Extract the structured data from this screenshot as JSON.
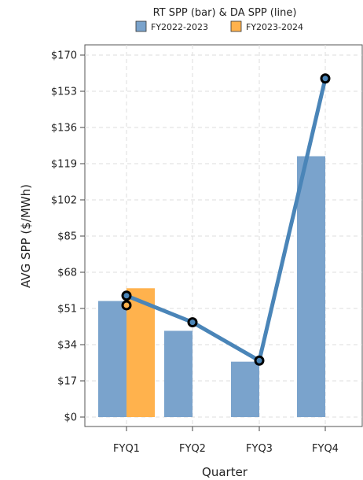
{
  "chart_data": {
    "type": "bar",
    "legend": {
      "title": "RT SPP (bar) & DA SPP (line)",
      "placement": "top",
      "items": [
        "FY2022-2023",
        "FY2023-2024"
      ]
    },
    "categories": [
      "FYQ1",
      "FYQ2",
      "FYQ3",
      "FYQ4"
    ],
    "bar_series": [
      {
        "name": "FY2022-2023",
        "color": "#7aa3cc",
        "values": [
          54.5,
          40.5,
          26.0,
          122.5
        ]
      },
      {
        "name": "FY2023-2024",
        "color": "#ffb24d",
        "values": [
          60.5,
          null,
          null,
          null
        ]
      }
    ],
    "line_series": [
      {
        "name": "FY2022-2023",
        "color": "#4a85b8",
        "values": [
          57.0,
          44.5,
          26.5,
          159.0
        ]
      },
      {
        "name": "FY2023-2024",
        "values": [
          52.5,
          null,
          null,
          null
        ]
      }
    ],
    "xlabel": "Quarter",
    "ylabel": "AVG SPP ($/MWh)",
    "ylim": [
      0,
      170
    ],
    "yticks": [
      0,
      17,
      34,
      51,
      68,
      85,
      102,
      119,
      136,
      153,
      170
    ],
    "ytick_labels": [
      "$0",
      "$17",
      "$34",
      "$51",
      "$68",
      "$85",
      "$102",
      "$119",
      "$136",
      "$153",
      "$170"
    ],
    "grid": true
  }
}
